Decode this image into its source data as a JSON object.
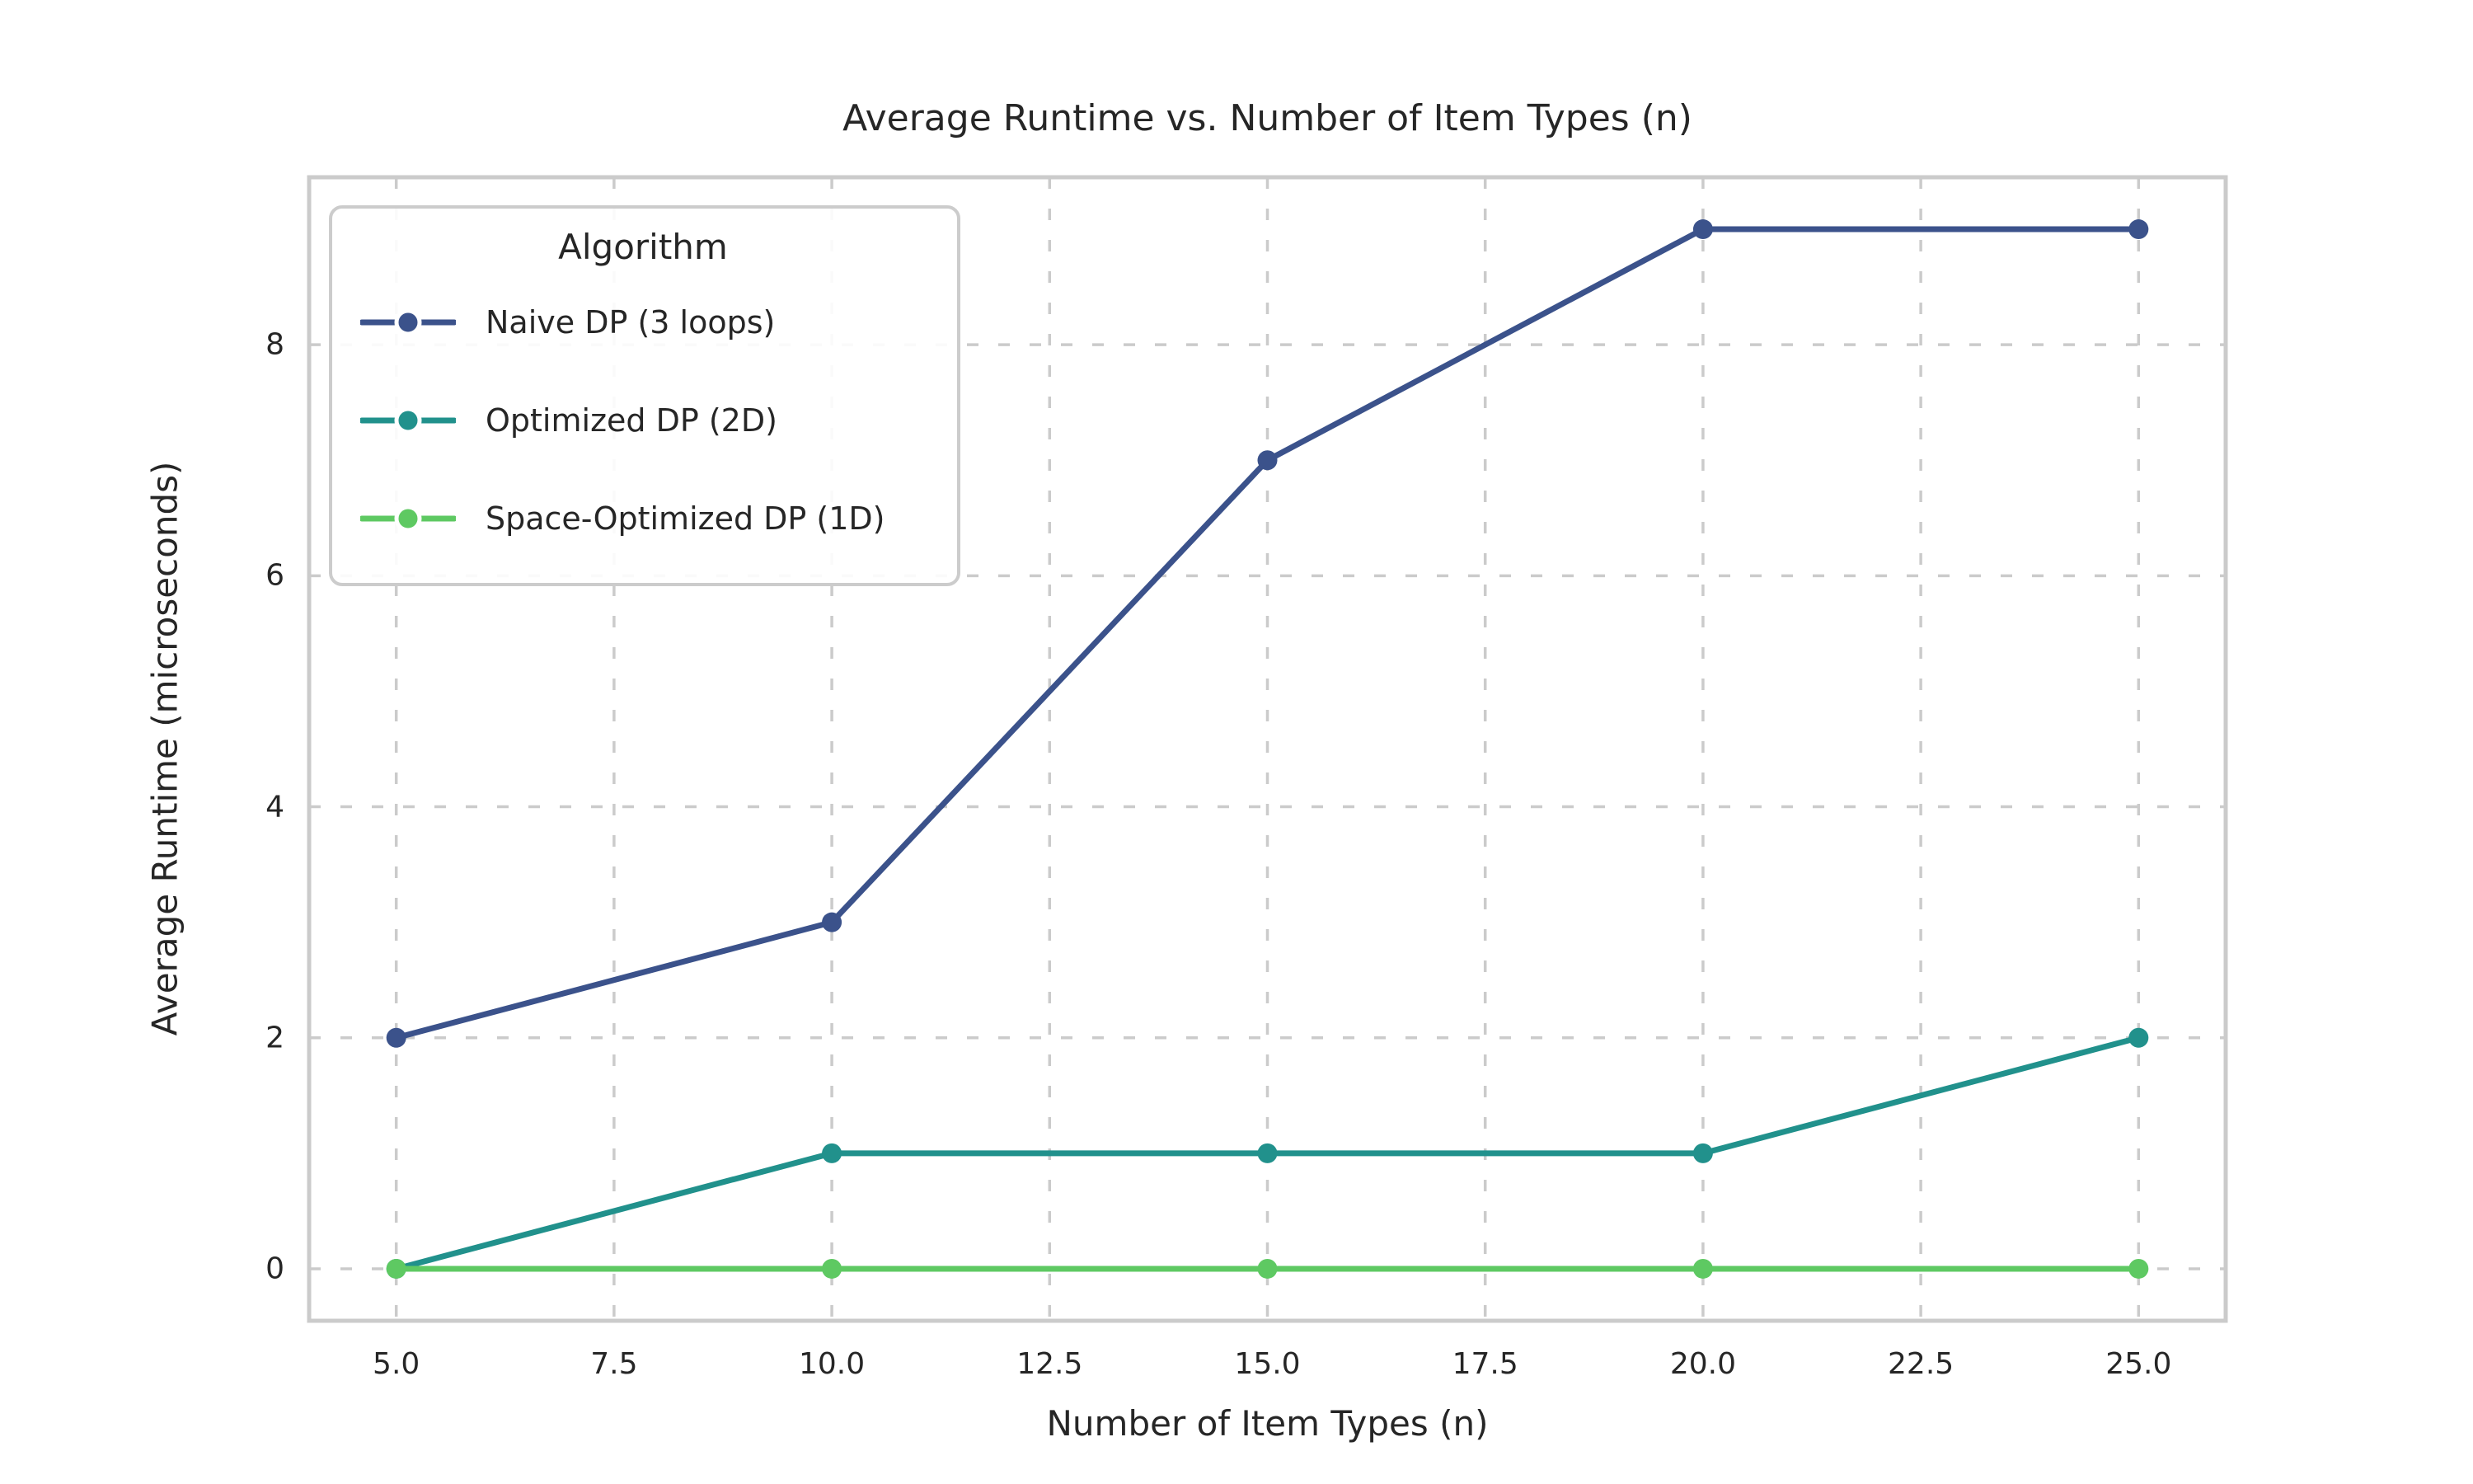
{
  "figure": {
    "background_color": "#ffffff",
    "text_color": "#262626",
    "grid_color": "#cbcbcb",
    "spine_color": "#cbcbcb"
  },
  "chart_data": {
    "type": "line",
    "title": "Average Runtime vs. Number of Item Types (n)",
    "xlabel": "Number of Item Types (n)",
    "ylabel": "Average Runtime (microseconds)",
    "x": [
      5,
      10,
      15,
      20,
      25
    ],
    "series": [
      {
        "name": "Naive DP (3 loops)",
        "color": "#3b528b",
        "values": [
          2,
          3,
          7,
          9,
          9
        ]
      },
      {
        "name": "Optimized DP (2D)",
        "color": "#21918c",
        "values": [
          0,
          1,
          1,
          1,
          2
        ]
      },
      {
        "name": "Space-Optimized DP (1D)",
        "color": "#5ec962",
        "values": [
          0,
          0,
          0,
          0,
          0
        ]
      }
    ],
    "xticks": [
      5.0,
      7.5,
      10.0,
      12.5,
      15.0,
      17.5,
      20.0,
      22.5,
      25.0
    ],
    "xtick_labels": [
      "5.0",
      "7.5",
      "10.0",
      "12.5",
      "15.0",
      "17.5",
      "20.0",
      "22.5",
      "25.0"
    ],
    "yticks": [
      0,
      2,
      4,
      6,
      8
    ],
    "ytick_labels": [
      "0",
      "2",
      "4",
      "6",
      "8"
    ],
    "xlim": [
      4,
      26
    ],
    "ylim": [
      -0.45,
      9.45
    ],
    "grid": true,
    "grid_style": "dashed",
    "legend": {
      "title": "Algorithm",
      "position": "upper-left"
    }
  }
}
